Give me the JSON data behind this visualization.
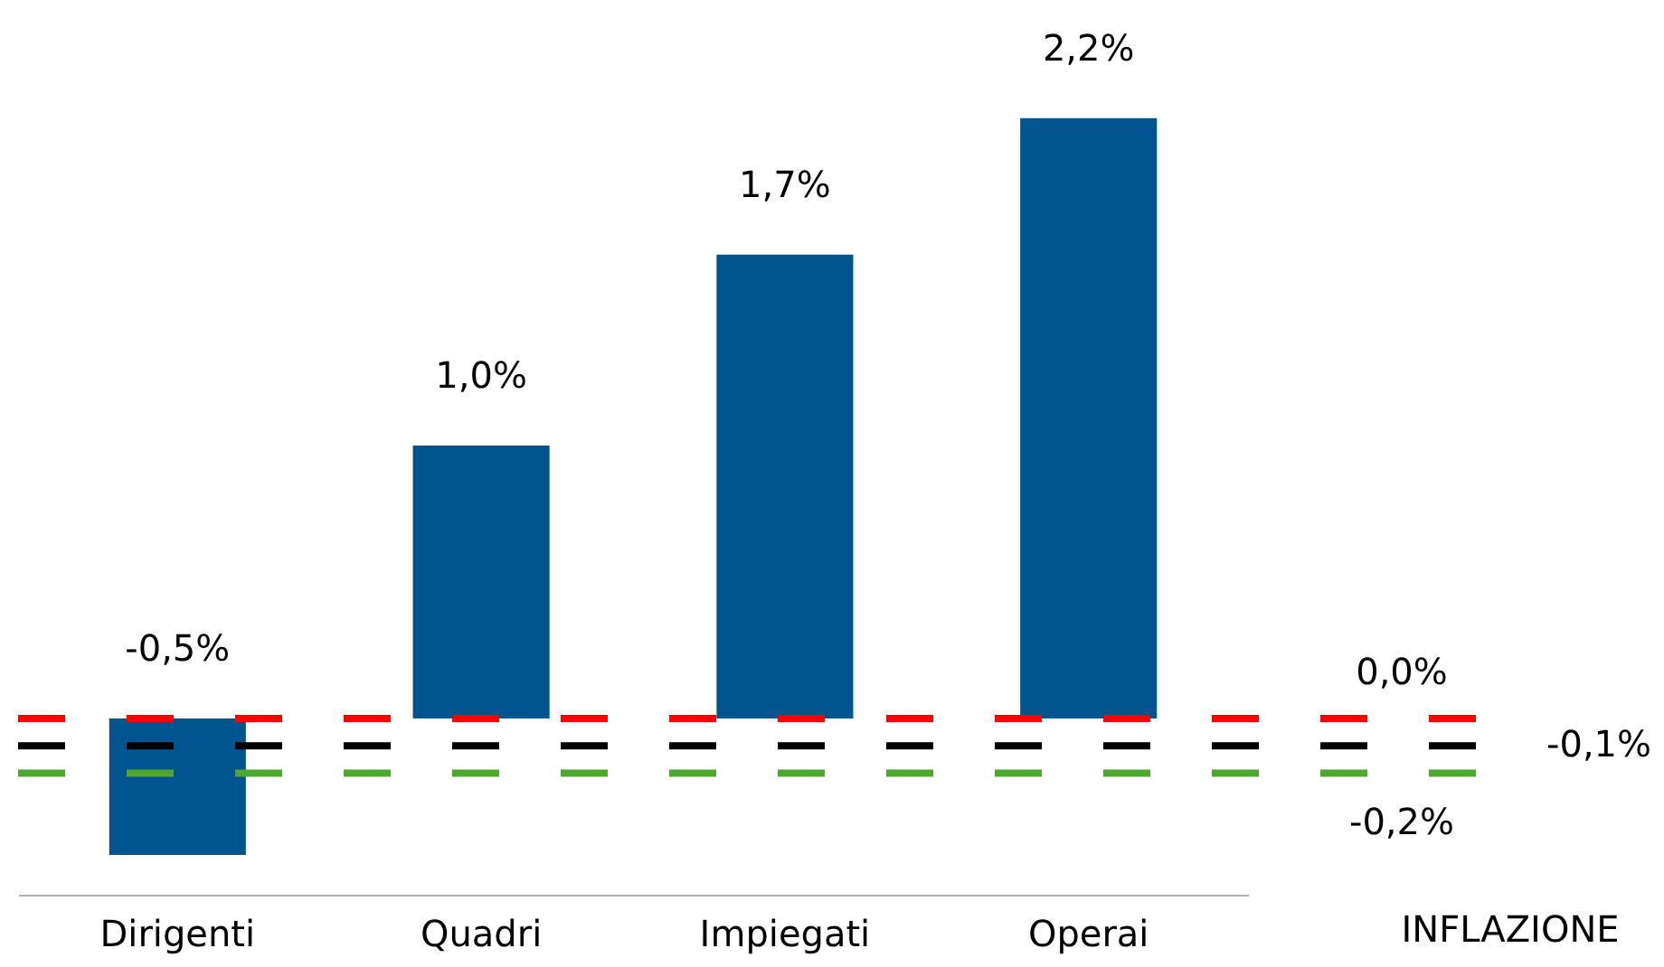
{
  "chart_data": {
    "type": "bar",
    "categories": [
      "Dirigenti",
      "Quadri",
      "Impiegati",
      "Operai"
    ],
    "values": [
      -0.5,
      1.0,
      1.7,
      2.2
    ],
    "color": "#00548f",
    "value_labels": [
      "-0,5%",
      "1,0%",
      "1,7%",
      "2,2%"
    ],
    "tick_labels": "x",
    "grid": false,
    "ref_lines": [
      {
        "axis": "y",
        "value": 0.0,
        "label": "0,0%",
        "color": "#ff0000",
        "line_style": "dashed"
      },
      {
        "axis": "y",
        "value": -0.1,
        "label": "-0,1%",
        "color": "#000000",
        "line_style": "dashed"
      },
      {
        "axis": "y",
        "value": -0.2,
        "label": "-0,2%",
        "color": "#4ea72e",
        "line_style": "dashed"
      }
    ],
    "annotations": [
      "INFLAZIONE"
    ]
  }
}
